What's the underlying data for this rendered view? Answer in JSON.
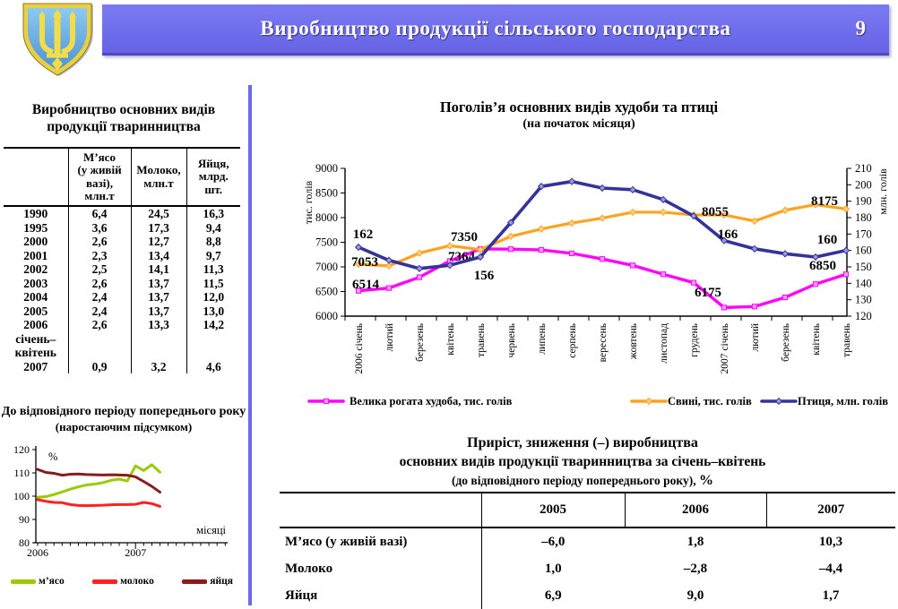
{
  "header": {
    "title": "Виробництво продукції сільського господарства",
    "page_number": "9"
  },
  "left_panel": {
    "table_title": "Виробництво основних видів\nпродукції тваринництва",
    "table": {
      "col_headers": [
        "",
        "М’ясо\n(у живій\nвазі),\nмлн.т",
        "Молоко,\nмлн.т",
        "Яйця,\nмлрд.\nшт."
      ],
      "rows": [
        {
          "label": "1990",
          "values": [
            "6,4",
            "24,5",
            "16,3"
          ]
        },
        {
          "label": "1995",
          "values": [
            "3,6",
            "17,3",
            "9,4"
          ]
        },
        {
          "label": "2000",
          "values": [
            "2,6",
            "12,7",
            "8,8"
          ]
        },
        {
          "label": "2001",
          "values": [
            "2,3",
            "13,4",
            "9,7"
          ]
        },
        {
          "label": "2002",
          "values": [
            "2,5",
            "14,1",
            "11,3"
          ]
        },
        {
          "label": "2003",
          "values": [
            "2,6",
            "13,7",
            "11,5"
          ]
        },
        {
          "label": "2004",
          "values": [
            "2,4",
            "13,7",
            "12,0"
          ]
        },
        {
          "label": "2005",
          "values": [
            "2,4",
            "13,7",
            "13,0"
          ]
        },
        {
          "label": "2006",
          "values": [
            "2,6",
            "13,3",
            "14,2"
          ]
        },
        {
          "label": "січень–\nквітень\n2007",
          "values": [
            "0,9",
            "3,2",
            "4,6"
          ]
        }
      ]
    }
  },
  "chart_data": [
    {
      "type": "line",
      "title": "Поголів’я основних видів худоби та птиці",
      "subtitle": "(на початок місяця)",
      "grid": false,
      "legend_position": "bottom",
      "x_labels": [
        "2006 січень",
        "лютий",
        "березень",
        "квітень",
        "травень",
        "червень",
        "липень",
        "серпень",
        "вересень",
        "жовтень",
        "листопад",
        "грудень",
        "2007 січень",
        "лютий",
        "березень",
        "квітень",
        "травень"
      ],
      "left_axis": {
        "label": "тис. голів",
        "min": 6000,
        "max": 9000,
        "step": 500
      },
      "right_axis": {
        "label": "млн. голів",
        "min": 120,
        "max": 210,
        "step": 10
      },
      "series": [
        {
          "name": "Велика рогата худоба, тис. голів",
          "axis": "left",
          "color": "#FF00FF",
          "marker": "square",
          "values": [
            6514,
            6570,
            6790,
            7120,
            7364,
            7360,
            7345,
            7275,
            7160,
            7030,
            6850,
            6680,
            6175,
            6195,
            6380,
            6650,
            6850
          ],
          "point_labels": {
            "0": "6514",
            "4": "7364",
            "12": "6175",
            "16": "6850"
          }
        },
        {
          "name": "Свині, тис. голів",
          "axis": "left",
          "color": "#FFA21F",
          "marker": "diamond",
          "values": [
            7053,
            7020,
            7280,
            7430,
            7350,
            7620,
            7770,
            7890,
            7990,
            8110,
            8110,
            8055,
            8055,
            7930,
            8150,
            8265,
            8175
          ],
          "point_labels": {
            "0": "7053",
            "4": "7350",
            "12": "8055",
            "16": "8175"
          }
        },
        {
          "name": "Птиця, млн. голів",
          "axis": "right",
          "color": "#333399",
          "marker": "diamond",
          "values": [
            162,
            154,
            149,
            151,
            156,
            177,
            199,
            202,
            198,
            197,
            191,
            181,
            166,
            161,
            158,
            156,
            160
          ],
          "point_labels": {
            "0": "162",
            "4": "156",
            "12": "166",
            "16": "160"
          }
        }
      ]
    },
    {
      "type": "line",
      "title": "До відповідного періоду попереднього року",
      "subtitle": "(наростаючим підсумком)",
      "ylabel": "%",
      "xlabel": "місяці",
      "ylim": [
        80,
        120
      ],
      "ytick_step": 10,
      "x_total_ticks": 24,
      "x_axis_years": [
        {
          "label": "2006",
          "month_index": 0
        },
        {
          "label": "2007",
          "month_index": 12
        }
      ],
      "series": [
        {
          "name": "м’ясо",
          "color": "#99CC00",
          "values": [
            99.5,
            99.8,
            100.7,
            101.8,
            103,
            104,
            104.8,
            105.2,
            105.8,
            106.8,
            107.3,
            106.5,
            113,
            111,
            113.5,
            110.3
          ]
        },
        {
          "name": "молоко",
          "color": "#FF2020",
          "values": [
            98.5,
            97.8,
            97.3,
            97.2,
            96.4,
            96,
            95.9,
            96,
            96.1,
            96.3,
            96.4,
            96.4,
            96.5,
            97.3,
            96.8,
            95.6
          ]
        },
        {
          "name": "яйця",
          "color": "#8B1A1A",
          "values": [
            111.5,
            110.2,
            109.8,
            109,
            109.4,
            109.5,
            109.3,
            109.2,
            109.1,
            109.2,
            109.1,
            109,
            108.3,
            106.3,
            104.2,
            101.7
          ]
        }
      ]
    }
  ],
  "bottom_table": {
    "title_line1": "Приріст, зниження (–) виробництва",
    "title_line2": "основних видів продукції тваринництва за січень–квітень",
    "title_line3": "(до відповідного періоду попереднього року),",
    "title_line3_unit": "%",
    "col_headers": [
      "2005",
      "2006",
      "2007"
    ],
    "rows": [
      {
        "label": "М’ясо (у живій вазі)",
        "values": [
          "–6,0",
          "1,8",
          "10,3"
        ]
      },
      {
        "label": "Молоко",
        "values": [
          "1,0",
          "–2,8",
          "–4,4"
        ]
      },
      {
        "label": "Яйця",
        "values": [
          "6,9",
          "9,0",
          "1,7"
        ]
      }
    ]
  }
}
